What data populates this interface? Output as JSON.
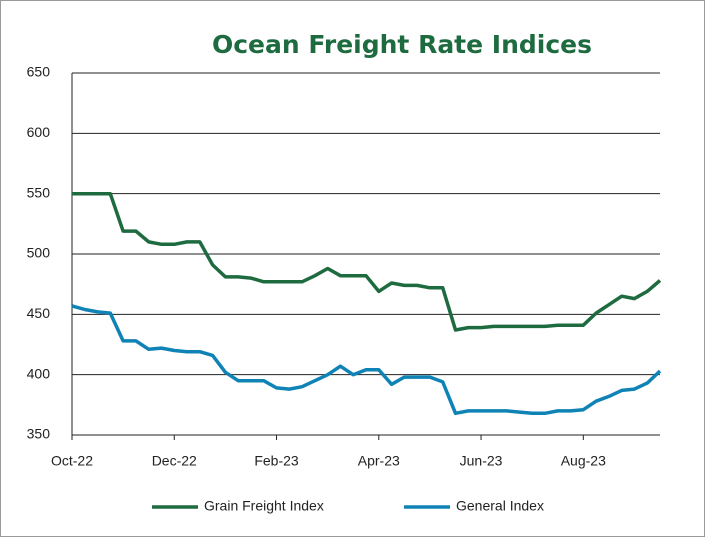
{
  "chart_data": {
    "type": "line",
    "title": "Ocean Freight Rate Indices",
    "categories": [
      "Oct-22",
      null,
      null,
      null,
      null,
      null,
      null,
      null,
      "Dec-22",
      null,
      null,
      null,
      null,
      null,
      null,
      null,
      "Feb-23",
      null,
      null,
      null,
      null,
      null,
      null,
      null,
      "Apr-23",
      null,
      null,
      null,
      null,
      null,
      null,
      null,
      "Jun-23",
      null,
      null,
      null,
      null,
      null,
      null,
      null,
      "Aug-23",
      null,
      null,
      null,
      null,
      null,
      null
    ],
    "series": [
      {
        "name": "Grain Freight Index",
        "color": "#1e6b40",
        "values": [
          550,
          550,
          550,
          550,
          519,
          519,
          510,
          508,
          508,
          510,
          510,
          491,
          481,
          481,
          480,
          477,
          477,
          477,
          477,
          482,
          488,
          482,
          482,
          482,
          469,
          476,
          474,
          474,
          472,
          472,
          437,
          439,
          439,
          440,
          440,
          440,
          440,
          440,
          441,
          441,
          441,
          451,
          458,
          465,
          463,
          469,
          478
        ]
      },
      {
        "name": "General Index",
        "color": "#1083b6",
        "values": [
          457,
          454,
          452,
          451,
          428,
          428,
          421,
          422,
          420,
          419,
          419,
          416,
          402,
          395,
          395,
          395,
          389,
          388,
          390,
          395,
          400,
          407,
          400,
          404,
          404,
          392,
          398,
          398,
          398,
          394,
          368,
          370,
          370,
          370,
          370,
          369,
          368,
          368,
          370,
          370,
          371,
          378,
          382,
          387,
          388,
          393,
          403
        ]
      }
    ],
    "ylim": [
      350,
      650
    ],
    "yticks": [
      350,
      400,
      450,
      500,
      550,
      600,
      650
    ],
    "grid": true,
    "legend": "bottom"
  }
}
